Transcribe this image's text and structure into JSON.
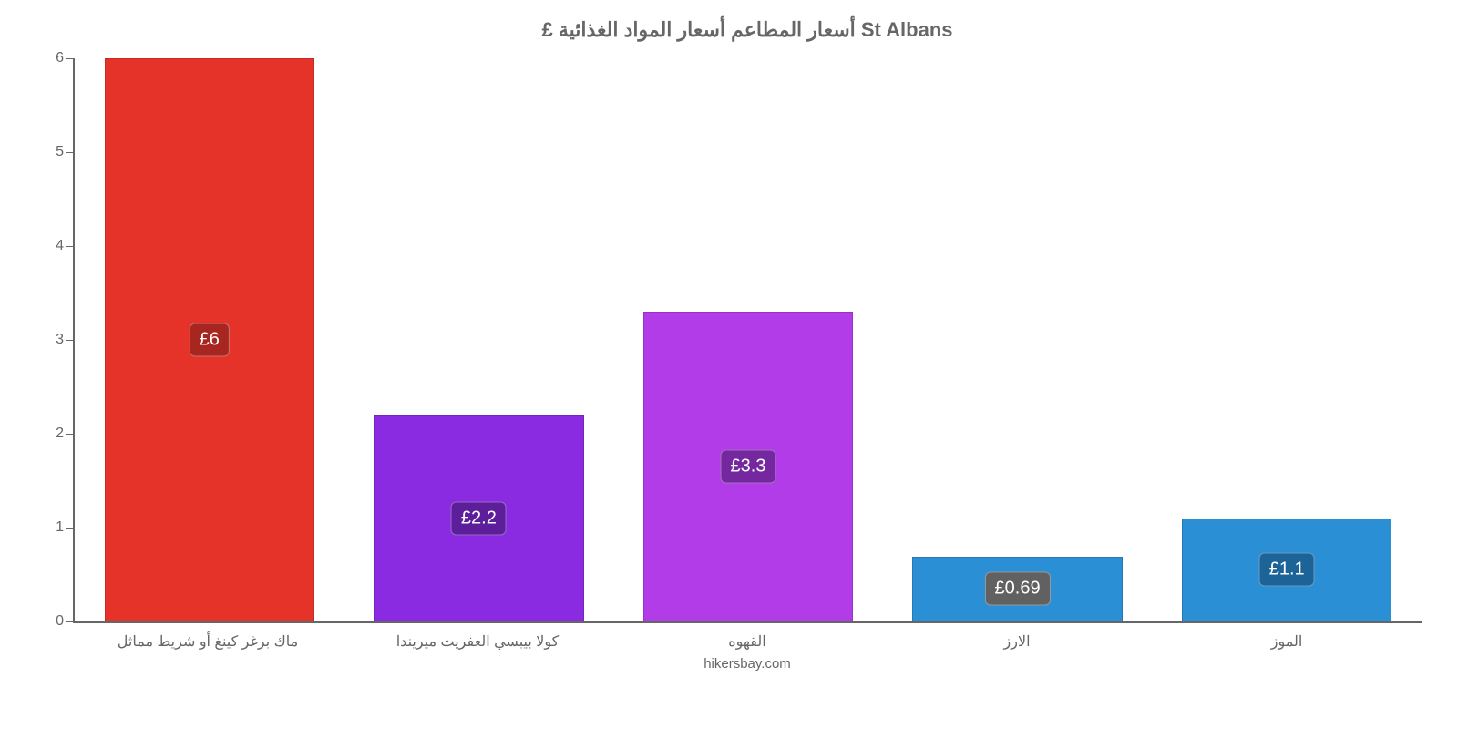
{
  "chart": {
    "type": "bar",
    "title": "£ أسعار المطاعم أسعار المواد الغذائية St Albans",
    "title_fontsize": 22,
    "title_color": "#666666",
    "credit": "hikersbay.com",
    "credit_color": "#666666",
    "background_color": "#ffffff",
    "axis_color": "#666666",
    "tick_font_color": "#666666",
    "tick_fontsize": 16,
    "ylim": [
      0,
      6
    ],
    "ytick_step": 1,
    "yticks": [
      0,
      1,
      2,
      3,
      4,
      5,
      6
    ],
    "bar_width_ratio": 0.78,
    "badge_fontsize": 20,
    "badge_text_color": "#ffffff",
    "categories": [
      "ماك برغر كينغ أو شريط مماثل",
      "كولا بيبسي العفريت ميريندا",
      "القهوه",
      "الارز",
      "الموز"
    ],
    "values": [
      6,
      2.2,
      3.3,
      0.69,
      1.1
    ],
    "value_labels": [
      "£6",
      "£2.2",
      "£3.3",
      "£0.69",
      "£1.1"
    ],
    "bar_colors": [
      "#e5332a",
      "#8a2be2",
      "#b13ce8",
      "#2a8fd4",
      "#2a8fd4"
    ],
    "badge_colors": [
      "#a82620",
      "#5d1e9c",
      "#74279e",
      "#616161",
      "#1c6497"
    ]
  }
}
